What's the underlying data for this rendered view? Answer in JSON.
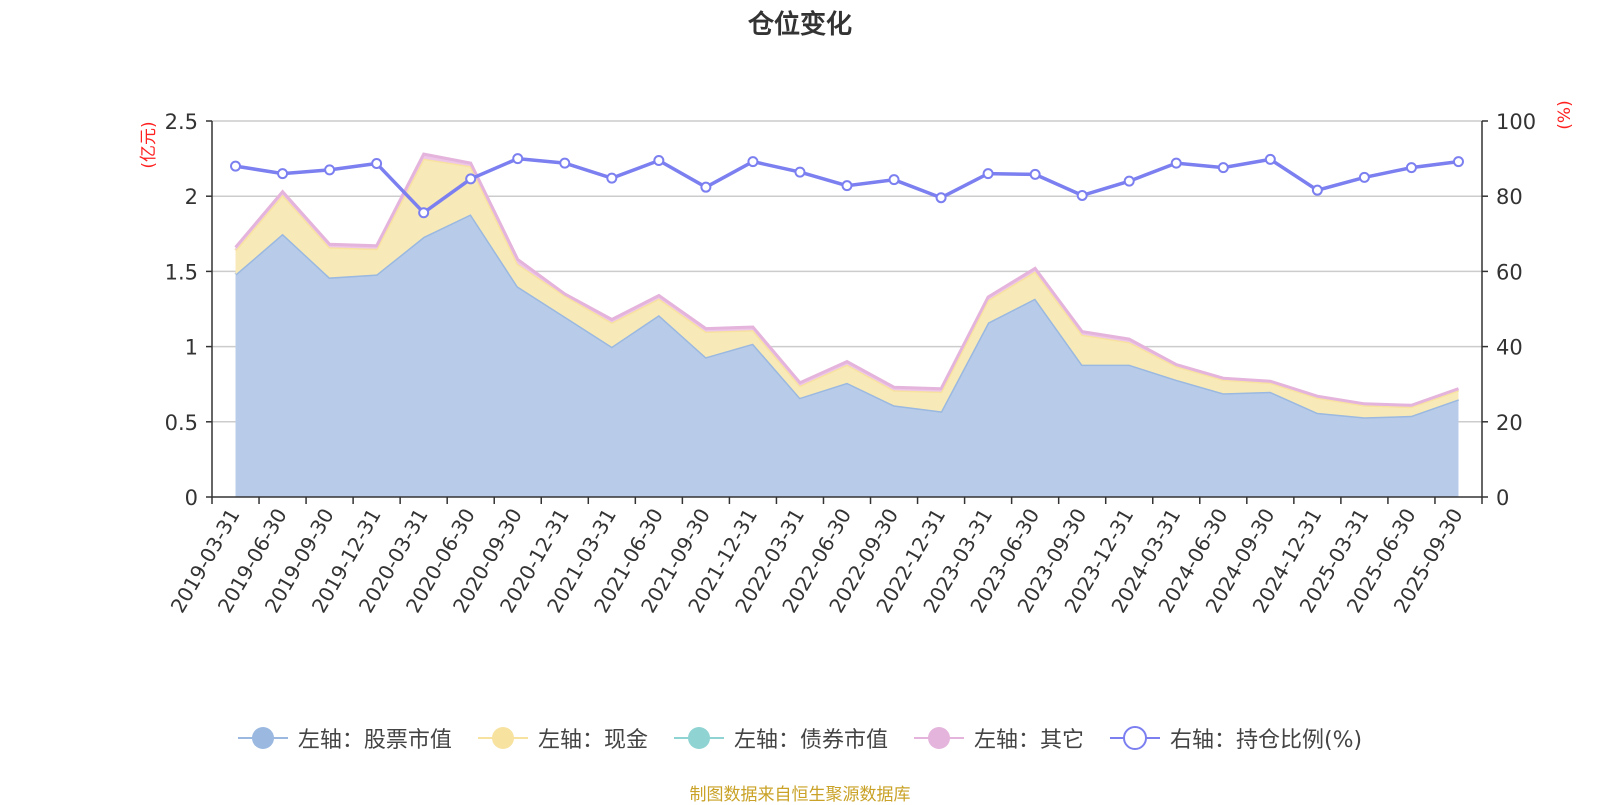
{
  "chart_data": {
    "type": "area",
    "title": "仓位变化",
    "left_axis_unit": "(亿元)",
    "right_axis_unit": "(%)",
    "categories": [
      "2019-03-31",
      "2019-06-30",
      "2019-09-30",
      "2019-12-31",
      "2020-03-31",
      "2020-06-30",
      "2020-09-30",
      "2020-12-31",
      "2021-03-31",
      "2021-06-30",
      "2021-09-30",
      "2021-12-31",
      "2022-03-31",
      "2022-06-30",
      "2022-09-30",
      "2022-12-31",
      "2023-03-31",
      "2023-06-30",
      "2023-09-30",
      "2023-12-31",
      "2024-03-31",
      "2024-06-30",
      "2024-09-30",
      "2024-12-31",
      "2025-03-31",
      "2025-06-30",
      "2025-09-30"
    ],
    "left_ylim": [
      0,
      2.5
    ],
    "left_ticks": [
      "0",
      "0.5",
      "1",
      "1.5",
      "2",
      "2.5"
    ],
    "right_ylim": [
      0,
      100
    ],
    "right_ticks": [
      "0",
      "20",
      "40",
      "60",
      "80",
      "100"
    ],
    "series": [
      {
        "name": "左轴：股票市值",
        "axis": "left",
        "stack": true,
        "color": "#9ab8e0",
        "fill": "#b8cce9",
        "values": [
          1.48,
          1.75,
          1.46,
          1.48,
          1.73,
          1.88,
          1.4,
          1.2,
          1.0,
          1.21,
          0.93,
          1.02,
          0.66,
          0.76,
          0.61,
          0.57,
          1.16,
          1.32,
          0.88,
          0.88,
          0.78,
          0.69,
          0.7,
          0.56,
          0.53,
          0.54,
          0.65
        ]
      },
      {
        "name": "左轴：现金",
        "axis": "left",
        "stack": true,
        "color": "#f7e2a0",
        "fill": "#f8eab8",
        "values": [
          0.16,
          0.26,
          0.2,
          0.17,
          0.52,
          0.32,
          0.15,
          0.14,
          0.16,
          0.11,
          0.17,
          0.09,
          0.08,
          0.12,
          0.1,
          0.13,
          0.15,
          0.18,
          0.2,
          0.15,
          0.09,
          0.09,
          0.06,
          0.1,
          0.08,
          0.06,
          0.06
        ]
      },
      {
        "name": "左轴：债券市值",
        "axis": "left",
        "stack": true,
        "color": "#8fd3d3",
        "fill": "#a8dede",
        "values": [
          0,
          0,
          0,
          0,
          0,
          0,
          0,
          0,
          0,
          0,
          0,
          0,
          0,
          0,
          0,
          0,
          0,
          0,
          0,
          0,
          0,
          0,
          0,
          0,
          0,
          0,
          0
        ]
      },
      {
        "name": "左轴：其它",
        "axis": "left",
        "stack": true,
        "color": "#e4b4dc",
        "fill": "#eec6e8",
        "values": [
          0.02,
          0.02,
          0.02,
          0.02,
          0.03,
          0.02,
          0.03,
          0.01,
          0.02,
          0.02,
          0.02,
          0.02,
          0.02,
          0.02,
          0.02,
          0.02,
          0.02,
          0.02,
          0.02,
          0.02,
          0.01,
          0.01,
          0.01,
          0.01,
          0.01,
          0.01,
          0.01
        ]
      },
      {
        "name": "右轴：持仓比例(%)",
        "axis": "right",
        "type": "line",
        "color": "#7b7ff0",
        "values": [
          88.0,
          86.0,
          87.0,
          88.7,
          75.6,
          84.6,
          90.0,
          88.8,
          84.8,
          89.5,
          82.4,
          89.2,
          86.4,
          82.8,
          84.4,
          79.6,
          86.0,
          85.8,
          80.2,
          84.0,
          88.8,
          87.6,
          89.8,
          81.6,
          85.0,
          87.6,
          89.2
        ]
      }
    ]
  },
  "source_note": "制图数据来自恒生聚源数据库"
}
